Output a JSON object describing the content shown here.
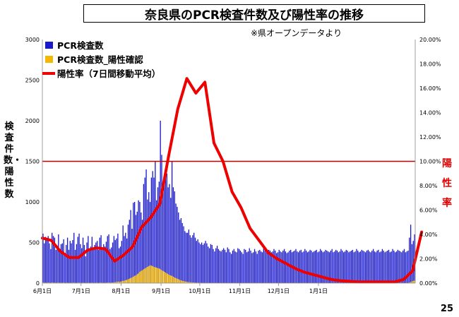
{
  "header": {
    "title": "奈良県のPCR検査件数及び陽性率の推移",
    "source_note": "※県オープンデータより",
    "page_number": "25"
  },
  "chart_data": {
    "type": "bar",
    "title": "奈良県のPCR検査件数及び陽性率の推移",
    "ylabel": "検査件数・陽性数",
    "ylabel_right": "陽性率",
    "ylim": [
      0,
      3000
    ],
    "y_ticks": [
      "0",
      "500",
      "1000",
      "1500",
      "2000",
      "2500",
      "3000"
    ],
    "ylim_right": [
      0,
      20
    ],
    "y_ticks_right": [
      "0.00%",
      "2.00%",
      "4.00%",
      "6.00%",
      "8.00%",
      "10.00%",
      "12.00%",
      "14.00%",
      "16.00%",
      "18.00%",
      "20.00%"
    ],
    "x_ticks": [
      "6月1日",
      "7月1日",
      "8月1日",
      "9月1日",
      "10月1日",
      "11月1日",
      "12月1日",
      "1月1日"
    ],
    "reference_line": {
      "value_right": 10,
      "color": "#c00000"
    },
    "legend_position": "top-left",
    "series": [
      {
        "name": "PCR検査数",
        "kind": "bar",
        "color": "#1a1acc"
      },
      {
        "name": "PCR検査数_陽性確認",
        "kind": "bar",
        "color": "#f5b800"
      },
      {
        "name": "陽性率（7日間移動平均）",
        "kind": "line",
        "axis": "right",
        "color": "#ee0000",
        "points": [
          [
            0,
            3.7
          ],
          [
            7,
            3.5
          ],
          [
            14,
            2.6
          ],
          [
            21,
            2.1
          ],
          [
            28,
            2.1
          ],
          [
            35,
            2.7
          ],
          [
            42,
            2.9
          ],
          [
            49,
            2.8
          ],
          [
            56,
            1.8
          ],
          [
            63,
            2.3
          ],
          [
            70,
            3.0
          ],
          [
            77,
            4.6
          ],
          [
            84,
            5.4
          ],
          [
            91,
            6.5
          ],
          [
            98,
            10.5
          ],
          [
            105,
            14.3
          ],
          [
            112,
            16.8
          ],
          [
            119,
            15.6
          ],
          [
            126,
            16.5
          ],
          [
            133,
            11.5
          ],
          [
            140,
            10.0
          ],
          [
            147,
            7.5
          ],
          [
            154,
            6.2
          ],
          [
            161,
            4.5
          ],
          [
            168,
            3.5
          ],
          [
            175,
            2.5
          ],
          [
            182,
            2.0
          ],
          [
            189,
            1.6
          ],
          [
            196,
            1.2
          ],
          [
            203,
            0.9
          ],
          [
            210,
            0.7
          ],
          [
            217,
            0.5
          ],
          [
            224,
            0.3
          ],
          [
            231,
            0.2
          ],
          [
            238,
            0.15
          ],
          [
            245,
            0.1
          ],
          [
            252,
            0.1
          ],
          [
            259,
            0.1
          ],
          [
            266,
            0.1
          ],
          [
            273,
            0.1
          ],
          [
            280,
            0.3
          ],
          [
            287,
            1.0
          ],
          [
            294,
            4.2
          ]
        ]
      }
    ],
    "daily_tests": [
      610,
      490,
      570,
      540,
      580,
      490,
      420,
      620,
      580,
      560,
      410,
      450,
      600,
      420,
      480,
      490,
      540,
      360,
      470,
      560,
      410,
      520,
      490,
      530,
      620,
      410,
      480,
      570,
      610,
      480,
      430,
      560,
      470,
      330,
      500,
      580,
      430,
      450,
      570,
      430,
      470,
      500,
      520,
      410,
      560,
      590,
      440,
      480,
      450,
      510,
      580,
      600,
      420,
      440,
      500,
      580,
      530,
      550,
      610,
      430,
      450,
      520,
      710,
      580,
      620,
      550,
      720,
      780,
      900,
      670,
      990,
      1000,
      840,
      880,
      1020,
      1000,
      870,
      780,
      1220,
      1300,
      1400,
      1030,
      1120,
      1000,
      1300,
      1380,
      1300,
      1500,
      1020,
      1180,
      1250,
      2000,
      1580,
      1200,
      1280,
      1300,
      1350,
      1180,
      1220,
      1050,
      1500,
      1180,
      1130,
      980,
      940,
      870,
      780,
      800,
      740,
      700,
      640,
      620,
      620,
      660,
      590,
      560,
      590,
      620,
      560,
      520,
      540,
      500,
      480,
      500,
      470,
      490,
      520,
      490,
      450,
      430,
      480,
      470,
      420,
      390,
      430,
      460,
      420,
      400,
      390,
      410,
      430,
      410,
      380,
      440,
      420,
      380,
      360,
      400,
      420,
      390,
      380,
      430,
      420,
      400,
      380,
      360,
      420,
      410,
      380,
      390,
      430,
      400,
      370,
      380,
      420,
      390,
      360,
      400,
      410,
      390,
      380,
      430,
      400,
      380,
      370,
      410,
      400,
      380,
      390,
      420,
      400,
      370,
      380,
      410,
      390,
      380,
      400,
      420,
      390,
      370,
      380,
      400,
      410,
      380,
      390,
      400,
      420,
      390,
      380,
      400,
      410,
      380,
      390,
      420,
      400,
      380,
      390,
      410,
      400,
      380,
      390,
      400,
      410,
      380,
      390,
      420,
      400,
      380,
      390,
      410,
      400,
      390,
      380,
      400,
      420,
      380,
      390,
      410,
      400,
      380,
      390,
      420,
      400,
      380,
      390,
      410,
      400,
      380,
      390,
      400,
      410,
      380,
      390,
      420,
      400,
      380,
      390,
      410,
      400,
      390,
      380,
      400,
      410,
      390,
      380,
      400,
      420,
      390,
      380,
      400,
      410,
      380,
      390,
      420,
      400,
      380,
      390,
      400,
      410,
      380,
      390,
      420,
      400,
      380,
      390,
      410,
      400,
      390,
      380,
      400,
      420,
      380,
      390,
      400,
      560,
      720,
      480,
      520,
      600
    ],
    "daily_positive": [
      8,
      6,
      7,
      5,
      8,
      6,
      4,
      9,
      7,
      6,
      5,
      6,
      7,
      5,
      6,
      5,
      7,
      4,
      5,
      6,
      4,
      5,
      5,
      6,
      7,
      4,
      5,
      6,
      7,
      5,
      4,
      6,
      5,
      3,
      5,
      6,
      4,
      5,
      6,
      4,
      5,
      5,
      6,
      4,
      6,
      7,
      5,
      5,
      5,
      6,
      7,
      8,
      6,
      7,
      8,
      10,
      12,
      14,
      18,
      16,
      18,
      22,
      28,
      30,
      36,
      40,
      48,
      55,
      62,
      70,
      80,
      90,
      95,
      110,
      120,
      140,
      150,
      160,
      170,
      180,
      190,
      200,
      210,
      220,
      215,
      210,
      200,
      195,
      190,
      185,
      180,
      170,
      160,
      150,
      140,
      130,
      120,
      110,
      100,
      95,
      88,
      80,
      70,
      62,
      55,
      48,
      40,
      34,
      28,
      24,
      20,
      17,
      15,
      13,
      11,
      10,
      9,
      8,
      7,
      6,
      6,
      5,
      5,
      5,
      4,
      4,
      4,
      4,
      3,
      3,
      3,
      3,
      3,
      3,
      2,
      2,
      2,
      2,
      2,
      2,
      2,
      2,
      2,
      2,
      2,
      2,
      2,
      2,
      2,
      2,
      2,
      2,
      2,
      2,
      2,
      2,
      2,
      2,
      2,
      2,
      2,
      2,
      2,
      2,
      2,
      2,
      2,
      2,
      2,
      2,
      2,
      2,
      2,
      2,
      2,
      2,
      2,
      2,
      2,
      2,
      2,
      2,
      2,
      2,
      2,
      2,
      2,
      2,
      2,
      2,
      2,
      2,
      2,
      2,
      2,
      2,
      2,
      2,
      2,
      2,
      2,
      2,
      2,
      2,
      2,
      2,
      2,
      2,
      2,
      2,
      2,
      2,
      2,
      2,
      2,
      2,
      2,
      2,
      2,
      2,
      2,
      2,
      2,
      2,
      2,
      2,
      2,
      2,
      2,
      2,
      2,
      2,
      2,
      2,
      2,
      2,
      2,
      2,
      2,
      2,
      2,
      2,
      2,
      2,
      2,
      2,
      2,
      2,
      2,
      2,
      2,
      2,
      2,
      2,
      2,
      2,
      2,
      2,
      2,
      2,
      2,
      2,
      2,
      2,
      2,
      2,
      2,
      2,
      2,
      2,
      2,
      2,
      2,
      2,
      2,
      2,
      2,
      2,
      2,
      2,
      2,
      2,
      2,
      2,
      8,
      14,
      20,
      28,
      30
    ]
  }
}
